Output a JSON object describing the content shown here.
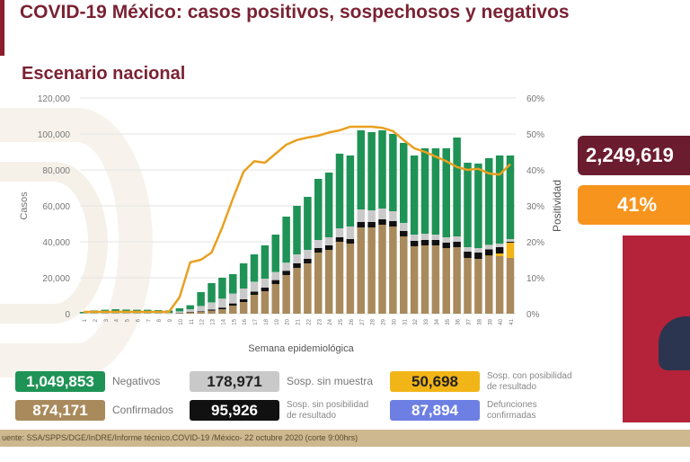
{
  "header": {
    "title": "COVID-19 México: casos positivos, sospechosos y negativos",
    "subtitle": "Escenario nacional"
  },
  "colors": {
    "negativos": "#1e9355",
    "sin_muestra": "#c9c9c9",
    "sin_posibilidad": "#111111",
    "con_posibilidad": "#f2b517",
    "confirmados": "#a98a5c",
    "positividad": "#e9a020",
    "defunciones": "#6d7fe3",
    "total_box": "#6b1d2f",
    "positivity_box": "#f7941d"
  },
  "chart_data": {
    "type": "bar",
    "stacked": true,
    "xlabel": "Semana epidemiológica",
    "ylabel": "Casos",
    "y2label": "Positividad",
    "ylim": [
      0,
      120000
    ],
    "y2lim": [
      0,
      60
    ],
    "yticks": [
      "0",
      "20,000",
      "40,000",
      "60,000",
      "80,000",
      "100,000",
      "120,000"
    ],
    "y2ticks": [
      "0%",
      "10%",
      "20%",
      "30%",
      "40%",
      "50%",
      "60%"
    ],
    "grid": true,
    "categories": [
      1,
      2,
      3,
      4,
      5,
      6,
      7,
      8,
      9,
      10,
      11,
      12,
      13,
      14,
      15,
      16,
      17,
      18,
      19,
      20,
      21,
      22,
      23,
      24,
      25,
      26,
      27,
      28,
      29,
      30,
      31,
      32,
      33,
      34,
      35,
      36,
      37,
      38,
      39,
      40,
      41
    ],
    "series": [
      {
        "key": "confirmados",
        "values": [
          0,
          0,
          0,
          0,
          0,
          0,
          0,
          0,
          100,
          400,
          800,
          1000,
          1700,
          2500,
          4500,
          6500,
          10500,
          12500,
          16500,
          21500,
          25500,
          28000,
          34000,
          35500,
          40000,
          39000,
          48000,
          48000,
          49500,
          48500,
          43000,
          37500,
          38000,
          38000,
          36500,
          37000,
          31000,
          30500,
          32000,
          32000,
          31000
        ]
      },
      {
        "key": "con_posibilidad",
        "values": [
          0,
          0,
          0,
          0,
          0,
          0,
          0,
          0,
          0,
          0,
          0,
          0,
          0,
          0,
          0,
          0,
          0,
          0,
          0,
          0,
          0,
          0,
          0,
          0,
          0,
          0,
          0,
          0,
          0,
          0,
          0,
          0,
          0,
          0,
          0,
          0,
          0,
          0,
          300,
          1500,
          8500
        ]
      },
      {
        "key": "sin_posibilidad",
        "values": [
          0,
          0,
          0,
          0,
          0,
          0,
          0,
          0,
          0,
          100,
          200,
          300,
          600,
          900,
          1200,
          1500,
          1800,
          2000,
          2200,
          2400,
          2500,
          2500,
          2500,
          2500,
          2500,
          2500,
          3000,
          3000,
          3000,
          3000,
          3000,
          3000,
          3000,
          3000,
          3000,
          3000,
          3500,
          3500,
          3500,
          3500,
          500
        ]
      },
      {
        "key": "sin_muestra",
        "values": [
          300,
          300,
          300,
          300,
          300,
          300,
          300,
          300,
          300,
          800,
          1500,
          3000,
          4000,
          5000,
          5500,
          6000,
          5500,
          5000,
          4500,
          4500,
          5000,
          5000,
          4500,
          4500,
          5000,
          7000,
          7000,
          6500,
          6000,
          5500,
          4500,
          3500,
          3500,
          3000,
          3000,
          3000,
          2500,
          2500,
          2500,
          2000,
          1500
        ]
      },
      {
        "key": "negativos",
        "values": [
          700,
          1500,
          1900,
          2200,
          2000,
          1900,
          1900,
          1700,
          1400,
          1700,
          2200,
          7700,
          10700,
          11600,
          10800,
          14000,
          15200,
          18500,
          20800,
          25600,
          27000,
          29500,
          34000,
          36000,
          41500,
          39500,
          44000,
          43500,
          43500,
          43000,
          44500,
          44000,
          47500,
          48000,
          49500,
          55000,
          47000,
          47000,
          48200,
          49000,
          46500
        ]
      }
    ],
    "line": {
      "key": "positividad",
      "axis": "right",
      "values": [
        0.5,
        0.5,
        0.5,
        0.5,
        0.5,
        0.5,
        0.5,
        0.5,
        0.5,
        4.6,
        14.3,
        15,
        17,
        24,
        32,
        39.5,
        42.4,
        42,
        44.5,
        47,
        48.3,
        49,
        49.5,
        50.4,
        51,
        52,
        52,
        52,
        51.7,
        50.8,
        48.3,
        46,
        45,
        43.7,
        42.4,
        40.8,
        40,
        40.3,
        39,
        38.7,
        41.6
      ]
    }
  },
  "kpis": {
    "total": "2,249,619",
    "positividad": "41%"
  },
  "legend": [
    {
      "key": "negativos",
      "value": "1,049,853",
      "label": "Negativos"
    },
    {
      "key": "sin_muestra",
      "value": "178,971",
      "label": "Sosp. sin muestra"
    },
    {
      "key": "con_posibilidad",
      "value": "50,698",
      "label": "Sosp. con posibilidad de resultado"
    },
    {
      "key": "confirmados",
      "value": "874,171",
      "label": "Confirmados"
    },
    {
      "key": "sin_posibilidad",
      "value": "95,926",
      "label": "Sosp. sin posibilidad de resultado"
    },
    {
      "key": "defunciones",
      "value": "87,894",
      "label": "Defunciones confirmadas"
    }
  ],
  "footer": "uente: SSA/SPPS/DGE/InDRE/Informe técnico.COVID-19 /México- 22 octubre 2020 (corte 9:00hrs)"
}
